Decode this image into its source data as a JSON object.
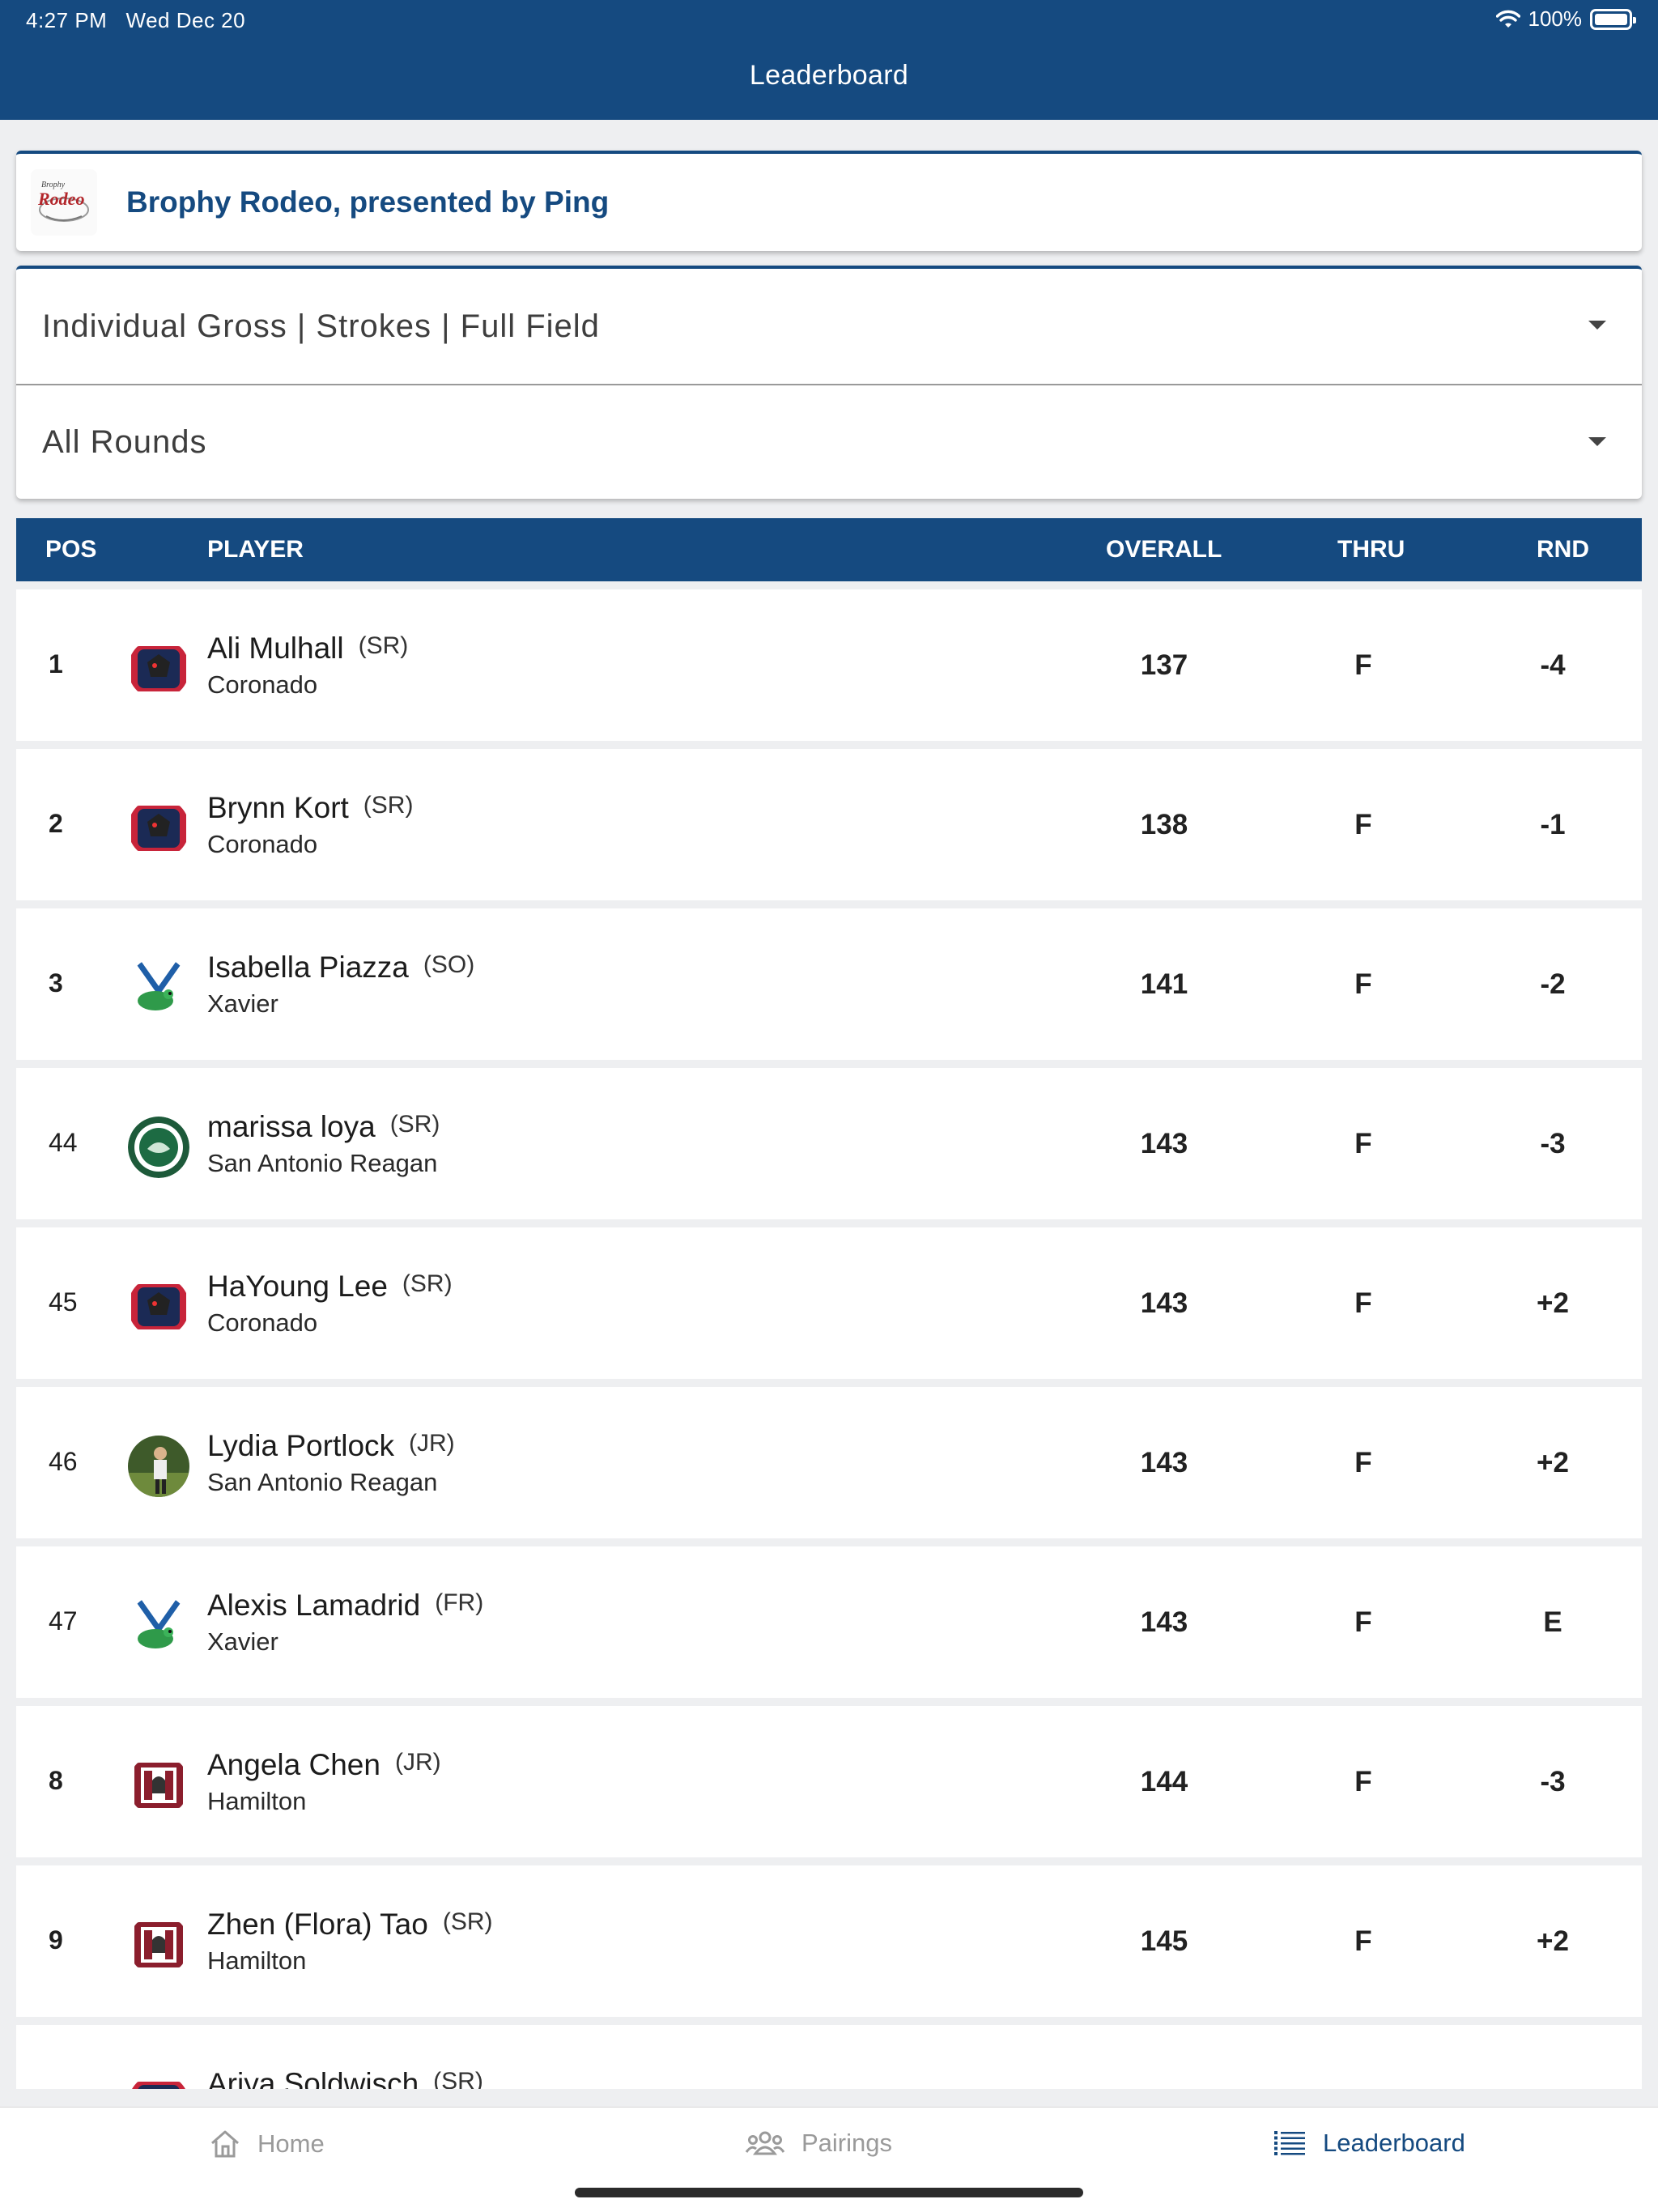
{
  "status_bar": {
    "time": "4:27 PM",
    "date": "Wed Dec 20",
    "battery": "100%"
  },
  "nav": {
    "title": "Leaderboard"
  },
  "event": {
    "name": "Brophy Rodeo, presented by Ping",
    "logo_text": "Rodeo"
  },
  "filters": {
    "type": "Individual Gross | Strokes | Full Field",
    "rounds": "All Rounds"
  },
  "table": {
    "headers": {
      "pos": "POS",
      "player": "PLAYER",
      "overall": "OVERALL",
      "thru": "THRU",
      "rnd": "RND"
    },
    "rows": [
      {
        "pos": "1",
        "name": "Ali Mulhall",
        "class": "(SR)",
        "school": "Coronado",
        "overall": "137",
        "thru": "F",
        "rnd": "-4"
      },
      {
        "pos": "2",
        "name": "Brynn Kort",
        "class": "(SR)",
        "school": "Coronado",
        "overall": "138",
        "thru": "F",
        "rnd": "-1"
      },
      {
        "pos": "3",
        "name": "Isabella Piazza",
        "class": "(SO)",
        "school": "Xavier",
        "overall": "141",
        "thru": "F",
        "rnd": "-2"
      },
      {
        "pos": "44",
        "name": "marissa loya",
        "class": "(SR)",
        "school": "San Antonio Reagan",
        "overall": "143",
        "thru": "F",
        "rnd": "-3"
      },
      {
        "pos": "45",
        "name": "HaYoung Lee",
        "class": "(SR)",
        "school": "Coronado",
        "overall": "143",
        "thru": "F",
        "rnd": "+2"
      },
      {
        "pos": "46",
        "name": "Lydia Portlock",
        "class": "(JR)",
        "school": "San Antonio Reagan",
        "overall": "143",
        "thru": "F",
        "rnd": "+2"
      },
      {
        "pos": "47",
        "name": "Alexis Lamadrid",
        "class": "(FR)",
        "school": "Xavier",
        "overall": "143",
        "thru": "F",
        "rnd": "E"
      },
      {
        "pos": "8",
        "name": "Angela Chen",
        "class": "(JR)",
        "school": "Hamilton",
        "overall": "144",
        "thru": "F",
        "rnd": "-3"
      },
      {
        "pos": "9",
        "name": "Zhen (Flora) Tao",
        "class": "(SR)",
        "school": "Hamilton",
        "overall": "145",
        "thru": "F",
        "rnd": "+2"
      },
      {
        "pos": "",
        "name": "Ariya Soldwisch",
        "class": "(SR)",
        "school": "",
        "overall": "",
        "thru": "",
        "rnd": ""
      }
    ]
  },
  "tabbar": {
    "home": "Home",
    "pairings": "Pairings",
    "leaderboard": "Leaderboard"
  },
  "colors": {
    "primary": "#154a80",
    "background": "#eeeff1",
    "inactive_tab": "#9a9a9a"
  }
}
